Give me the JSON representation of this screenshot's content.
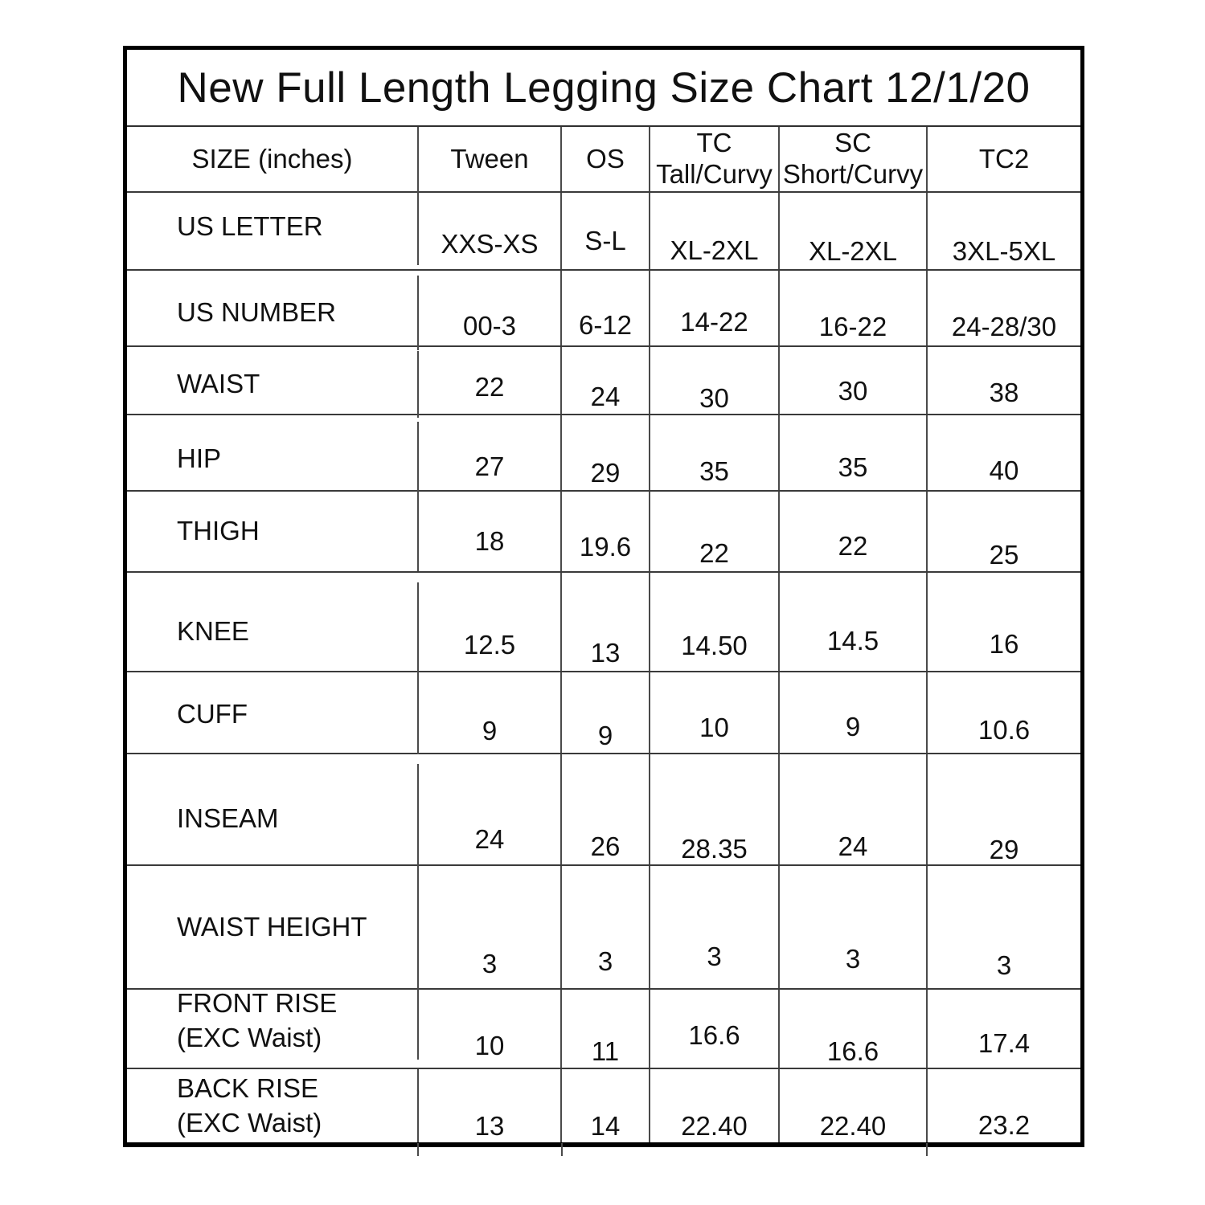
{
  "title": "New Full Length Legging Size Chart 12/1/20",
  "colors": {
    "background": "#ffffff",
    "outer_border": "#000000",
    "grid_line": "#3a3a3a",
    "text": "#111111"
  },
  "table": {
    "header": [
      {
        "lines": [
          "SIZE (inches)"
        ]
      },
      {
        "lines": [
          "Tween"
        ]
      },
      {
        "lines": [
          "OS"
        ]
      },
      {
        "lines": [
          "TC",
          "Tall/Curvy"
        ]
      },
      {
        "lines": [
          "SC",
          "Short/Curvy"
        ]
      },
      {
        "lines": [
          "TC2"
        ]
      }
    ],
    "rows": [
      {
        "label": [
          "US LETTER"
        ],
        "values": [
          "XXS-XS",
          "S-L",
          "XL-2XL",
          "XL-2XL",
          "3XL-5XL"
        ]
      },
      {
        "label": [
          "US NUMBER"
        ],
        "values": [
          "00-3",
          "6-12",
          "14-22",
          "16-22",
          "24-28/30"
        ]
      },
      {
        "label": [
          "WAIST"
        ],
        "values": [
          "22",
          "24",
          "30",
          "30",
          "38"
        ]
      },
      {
        "label": [
          "HIP"
        ],
        "values": [
          "27",
          "29",
          "35",
          "35",
          "40"
        ]
      },
      {
        "label": [
          "THIGH"
        ],
        "values": [
          "18",
          "19.6",
          "22",
          "22",
          "25"
        ]
      },
      {
        "label": [
          "KNEE"
        ],
        "values": [
          "12.5",
          "13",
          "14.50",
          "14.5",
          "16"
        ]
      },
      {
        "label": [
          "CUFF"
        ],
        "values": [
          "9",
          "9",
          "10",
          "9",
          "10.6"
        ]
      },
      {
        "label": [
          "INSEAM"
        ],
        "values": [
          "24",
          "26",
          "28.35",
          "24",
          "29"
        ]
      },
      {
        "label": [
          "WAIST HEIGHT"
        ],
        "values": [
          "3",
          "3",
          "3",
          "3",
          "3"
        ]
      },
      {
        "label": [
          "FRONT RISE",
          "(EXC Waist)"
        ],
        "values": [
          "10",
          "11",
          "16.6",
          "16.6",
          "17.4"
        ]
      },
      {
        "label": [
          "BACK RISE",
          "(EXC Waist)"
        ],
        "values": [
          "13",
          "14",
          "22.40",
          "22.40",
          "23.2"
        ]
      }
    ]
  },
  "chart_data": {
    "type": "table",
    "title": "New Full Length Legging Size Chart 12/1/20",
    "units": "inches",
    "columns": [
      "SIZE (inches)",
      "Tween",
      "OS",
      "TC Tall/Curvy",
      "SC Short/Curvy",
      "TC2"
    ],
    "rows": [
      [
        "US LETTER",
        "XXS-XS",
        "S-L",
        "XL-2XL",
        "XL-2XL",
        "3XL-5XL"
      ],
      [
        "US NUMBER",
        "00-3",
        "6-12",
        "14-22",
        "16-22",
        "24-28/30"
      ],
      [
        "WAIST",
        "22",
        "24",
        "30",
        "30",
        "38"
      ],
      [
        "HIP",
        "27",
        "29",
        "35",
        "35",
        "40"
      ],
      [
        "THIGH",
        "18",
        "19.6",
        "22",
        "22",
        "25"
      ],
      [
        "KNEE",
        "12.5",
        "13",
        "14.50",
        "14.5",
        "16"
      ],
      [
        "CUFF",
        "9",
        "9",
        "10",
        "9",
        "10.6"
      ],
      [
        "INSEAM",
        "24",
        "26",
        "28.35",
        "24",
        "29"
      ],
      [
        "WAIST HEIGHT",
        "3",
        "3",
        "3",
        "3",
        "3"
      ],
      [
        "FRONT RISE (EXC Waist)",
        "10",
        "11",
        "16.6",
        "16.6",
        "17.4"
      ],
      [
        "BACK RISE (EXC Waist)",
        "13",
        "14",
        "22.40",
        "22.40",
        "23.2"
      ]
    ]
  }
}
